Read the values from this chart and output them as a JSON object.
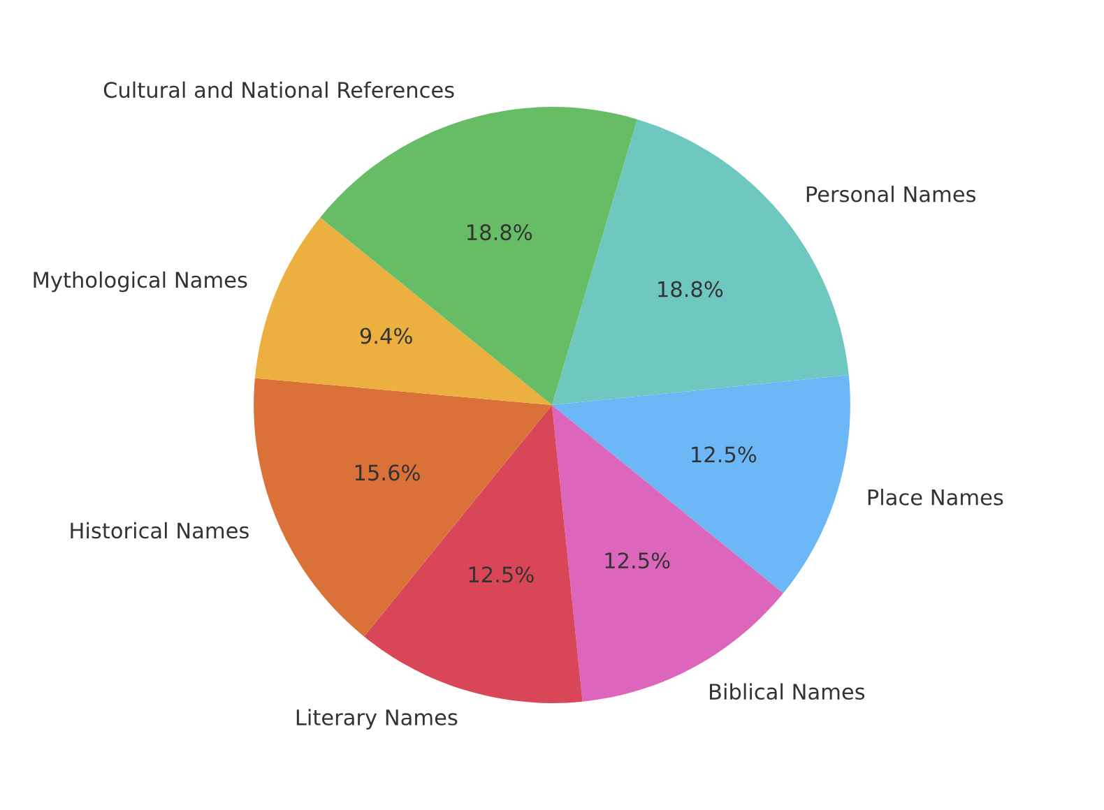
{
  "chart_data": {
    "type": "pie",
    "categories": [
      "Personal Names",
      "Place Names",
      "Biblical Names",
      "Literary Names",
      "Historical Names",
      "Mythological Names",
      "Cultural and National References"
    ],
    "values": [
      18.8,
      12.5,
      12.5,
      12.5,
      15.6,
      9.4,
      18.8
    ],
    "colors": [
      "#6fc8bf",
      "#6cb8f6",
      "#dd66bd",
      "#d84658",
      "#d97138",
      "#ebb040",
      "#66bd66"
    ],
    "value_labels": [
      "18.8%",
      "12.5%",
      "12.5%",
      "12.5%",
      "15.6%",
      "9.4%",
      "18.8%"
    ]
  }
}
